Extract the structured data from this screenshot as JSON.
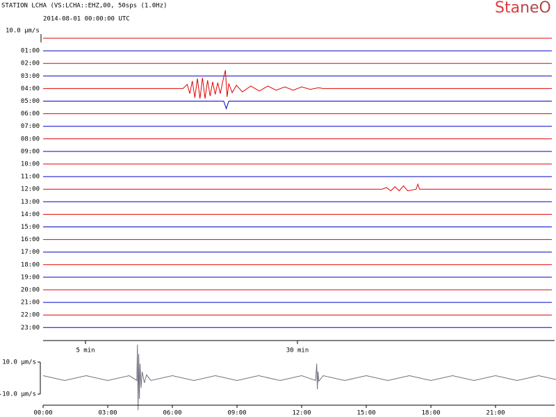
{
  "chart_data": [
    {
      "type": "helicorder",
      "title": "STATION LCHA (VS:LCHA::EHZ,00, 50sps (1.0Hz)",
      "subtitle": "2014-08-01 00:00:00 UTC",
      "logo": [
        "Sta",
        "neO"
      ],
      "logo_colors": [
        "#e03a3a",
        "#b04848"
      ],
      "scale_bar": {
        "value": 10,
        "label": "10.0 μm/s"
      },
      "xlim": [
        0,
        60
      ],
      "xticks": [
        {
          "value": 5,
          "label": "5 min"
        },
        {
          "value": 30,
          "label": "30 min"
        }
      ],
      "row_labels": [
        null,
        "01:00",
        "02:00",
        "03:00",
        "04:00",
        "05:00",
        "06:00",
        "07:00",
        "08:00",
        "09:00",
        "10:00",
        "11:00",
        "12:00",
        "13:00",
        "14:00",
        "15:00",
        "16:00",
        "17:00",
        "18:00",
        "19:00",
        "20:00",
        "21:00",
        "22:00",
        "23:00"
      ],
      "series": [
        {
          "color": "#e00000",
          "x": [
            0,
            60
          ],
          "values": [
            0,
            0
          ]
        },
        {
          "color": "#0000c8",
          "x": [
            0,
            60
          ],
          "values": [
            0,
            0
          ]
        },
        {
          "color": "#e00000",
          "x": [
            0,
            60
          ],
          "values": [
            0,
            0
          ]
        },
        {
          "color": "#0000c8",
          "x": [
            0,
            60
          ],
          "values": [
            0,
            0
          ]
        },
        {
          "color": "#e00000",
          "x": [
            0,
            16.5,
            17,
            17.3,
            17.6,
            17.9,
            18.2,
            18.5,
            18.8,
            19.1,
            19.4,
            19.7,
            20,
            20.3,
            20.6,
            20.9,
            21.2,
            21.5,
            21.7,
            21.9,
            22.3,
            22.8,
            23.5,
            24.5,
            25.5,
            26.5,
            27.5,
            28.5,
            29.5,
            30.5,
            31.5,
            32.5,
            33,
            60
          ],
          "values": [
            0,
            0,
            5,
            -6,
            9,
            -11,
            12,
            -12,
            13,
            -12,
            10,
            -9,
            8,
            -7,
            7,
            -6,
            9,
            22,
            -10,
            6,
            -5,
            4,
            -4,
            3,
            -3,
            3,
            -2,
            2,
            -2,
            2,
            -1,
            1,
            0,
            0
          ]
        },
        {
          "color": "#0000c8",
          "x": [
            0,
            21.3,
            21.6,
            21.9,
            60
          ],
          "values": [
            0,
            0,
            -9,
            0,
            0
          ]
        },
        {
          "color": "#e00000",
          "x": [
            0,
            60
          ],
          "values": [
            0,
            0
          ]
        },
        {
          "color": "#0000c8",
          "x": [
            0,
            60
          ],
          "values": [
            0,
            0
          ]
        },
        {
          "color": "#e00000",
          "x": [
            0,
            60
          ],
          "values": [
            0,
            0
          ]
        },
        {
          "color": "#0000c8",
          "x": [
            0,
            60
          ],
          "values": [
            0,
            0
          ]
        },
        {
          "color": "#e00000",
          "x": [
            0,
            60
          ],
          "values": [
            0,
            0
          ]
        },
        {
          "color": "#0000c8",
          "x": [
            0,
            60
          ],
          "values": [
            0,
            0
          ]
        },
        {
          "color": "#e00000",
          "x": [
            0,
            40,
            40.5,
            41,
            41.5,
            42,
            42.5,
            43,
            44,
            44.2,
            44.4,
            60
          ],
          "values": [
            0,
            0,
            2,
            -2,
            3,
            -2,
            4,
            -2,
            0,
            6,
            0,
            0
          ]
        },
        {
          "color": "#0000c8",
          "x": [
            0,
            60
          ],
          "values": [
            0,
            0
          ]
        },
        {
          "color": "#e00000",
          "x": [
            0,
            60
          ],
          "values": [
            0,
            0
          ]
        },
        {
          "color": "#0000c8",
          "x": [
            0,
            60
          ],
          "values": [
            0,
            0
          ]
        },
        {
          "color": "#e00000",
          "x": [
            0,
            60
          ],
          "values": [
            0,
            0
          ]
        },
        {
          "color": "#0000c8",
          "x": [
            0,
            60
          ],
          "values": [
            0,
            0
          ]
        },
        {
          "color": "#e00000",
          "x": [
            0,
            60
          ],
          "values": [
            0,
            0
          ]
        },
        {
          "color": "#0000c8",
          "x": [
            0,
            60
          ],
          "values": [
            0,
            0
          ]
        },
        {
          "color": "#e00000",
          "x": [
            0,
            60
          ],
          "values": [
            0,
            0
          ]
        },
        {
          "color": "#0000c8",
          "x": [
            0,
            60
          ],
          "values": [
            0,
            0
          ]
        },
        {
          "color": "#e00000",
          "x": [
            0,
            60
          ],
          "values": [
            0,
            0
          ]
        },
        {
          "color": "#0000c8",
          "x": [
            0,
            60
          ],
          "values": [
            0,
            0
          ]
        }
      ]
    },
    {
      "type": "overview",
      "xlim": [
        0,
        24
      ],
      "xticks": [
        {
          "value": 0,
          "label": "00:00"
        },
        {
          "value": 3,
          "label": "03:00"
        },
        {
          "value": 6,
          "label": "06:00"
        },
        {
          "value": 9,
          "label": "09:00"
        },
        {
          "value": 12,
          "label": "12:00"
        },
        {
          "value": 15,
          "label": "15:00"
        },
        {
          "value": 18,
          "label": "18:00"
        },
        {
          "value": 21,
          "label": "21:00"
        }
      ],
      "ylim": [
        -10,
        10
      ],
      "yticks": [
        {
          "value": 10,
          "label": "10.0 μm/s"
        },
        {
          "value": -10,
          "label": "-10.0 μm/s"
        }
      ],
      "color": "#707080",
      "x": [
        0,
        1,
        2,
        3,
        4,
        4.35,
        4.38,
        4.41,
        4.44,
        4.47,
        4.5,
        4.55,
        4.6,
        4.7,
        4.8,
        5,
        6,
        7,
        8,
        9,
        10,
        11,
        12,
        12.65,
        12.7,
        12.73,
        12.76,
        12.8,
        13,
        14,
        15,
        16,
        17,
        18,
        19,
        20,
        21,
        22,
        23,
        24
      ],
      "values": [
        1.5,
        -1.5,
        1.5,
        -1.5,
        1.5,
        -1.5,
        21,
        -20,
        15,
        -13,
        9,
        -6,
        4,
        -3,
        2,
        -1.5,
        1.5,
        -1.5,
        1.5,
        -1.5,
        1.5,
        -1.5,
        1.5,
        -1.5,
        9,
        -7,
        4,
        -2,
        1.5,
        -1.5,
        1.5,
        -1.5,
        1.5,
        -1.5,
        1.5,
        -1.5,
        1.5,
        -1.5,
        1.5,
        -1.5
      ]
    }
  ]
}
